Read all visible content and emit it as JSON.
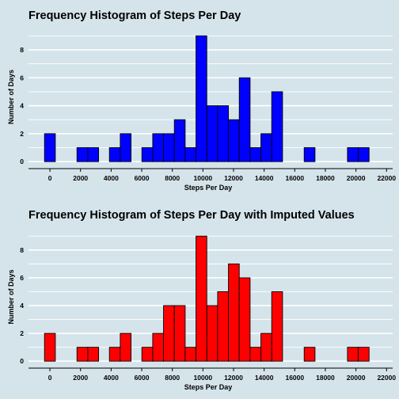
{
  "chart_data": [
    {
      "type": "bar",
      "title": "Frequency Histogram of Steps Per Day",
      "xlabel": "Steps Per Day",
      "ylabel": "Number of Days",
      "bin_width": 707.1,
      "bin_starts": [
        -353.55,
        353.55,
        1060.65,
        1767.75,
        2474.85,
        3181.95,
        3889.05,
        4596.15,
        5303.25,
        6010.35,
        6717.45,
        7424.55,
        8131.65,
        8838.75,
        9545.85,
        10252.95,
        10960.05,
        11667.15,
        12374.25,
        13081.35,
        13788.45,
        14495.55,
        15202.65,
        15909.75,
        16616.85,
        17323.95,
        18031.05,
        18738.15,
        19445.25,
        20152.35,
        20859.45
      ],
      "values": [
        2,
        0,
        0,
        1,
        1,
        0,
        1,
        2,
        0,
        1,
        2,
        2,
        3,
        1,
        9,
        4,
        4,
        3,
        6,
        1,
        2,
        5,
        0,
        0,
        1,
        0,
        0,
        0,
        1,
        1
      ],
      "xlim": [
        -1400,
        22400
      ],
      "ylim": [
        -0.5,
        9.3
      ],
      "xticks": [
        0,
        2000,
        4000,
        6000,
        8000,
        10000,
        12000,
        14000,
        16000,
        18000,
        20000,
        22000
      ],
      "yticks": [
        0,
        2,
        4,
        6,
        8
      ],
      "bar_color": "#0000ff",
      "grid": "horizontal"
    },
    {
      "type": "bar",
      "title": "Frequency Histogram of Steps Per Day with Imputed Values",
      "xlabel": "Steps Per Day",
      "ylabel": "Number of Days",
      "bin_width": 707.1,
      "bin_starts": [
        -353.55,
        353.55,
        1060.65,
        1767.75,
        2474.85,
        3181.95,
        3889.05,
        4596.15,
        5303.25,
        6010.35,
        6717.45,
        7424.55,
        8131.65,
        8838.75,
        9545.85,
        10252.95,
        10960.05,
        11667.15,
        12374.25,
        13081.35,
        13788.45,
        14495.55,
        15202.65,
        15909.75,
        16616.85,
        17323.95,
        18031.05,
        18738.15,
        19445.25,
        20152.35,
        20859.45
      ],
      "values": [
        2,
        0,
        0,
        1,
        1,
        0,
        1,
        2,
        0,
        1,
        2,
        4,
        4,
        1,
        9,
        4,
        5,
        7,
        6,
        1,
        2,
        5,
        0,
        0,
        1,
        0,
        0,
        0,
        1,
        1
      ],
      "xlim": [
        -1400,
        22400
      ],
      "ylim": [
        -0.5,
        9.3
      ],
      "xticks": [
        0,
        2000,
        4000,
        6000,
        8000,
        10000,
        12000,
        14000,
        16000,
        18000,
        20000,
        22000
      ],
      "yticks": [
        0,
        2,
        4,
        6,
        8
      ],
      "bar_color": "#ff0000",
      "grid": "horizontal"
    }
  ],
  "colors": {
    "background": "#d5e4eb",
    "grid": "#ffffff",
    "bar_outline": "#000000"
  }
}
